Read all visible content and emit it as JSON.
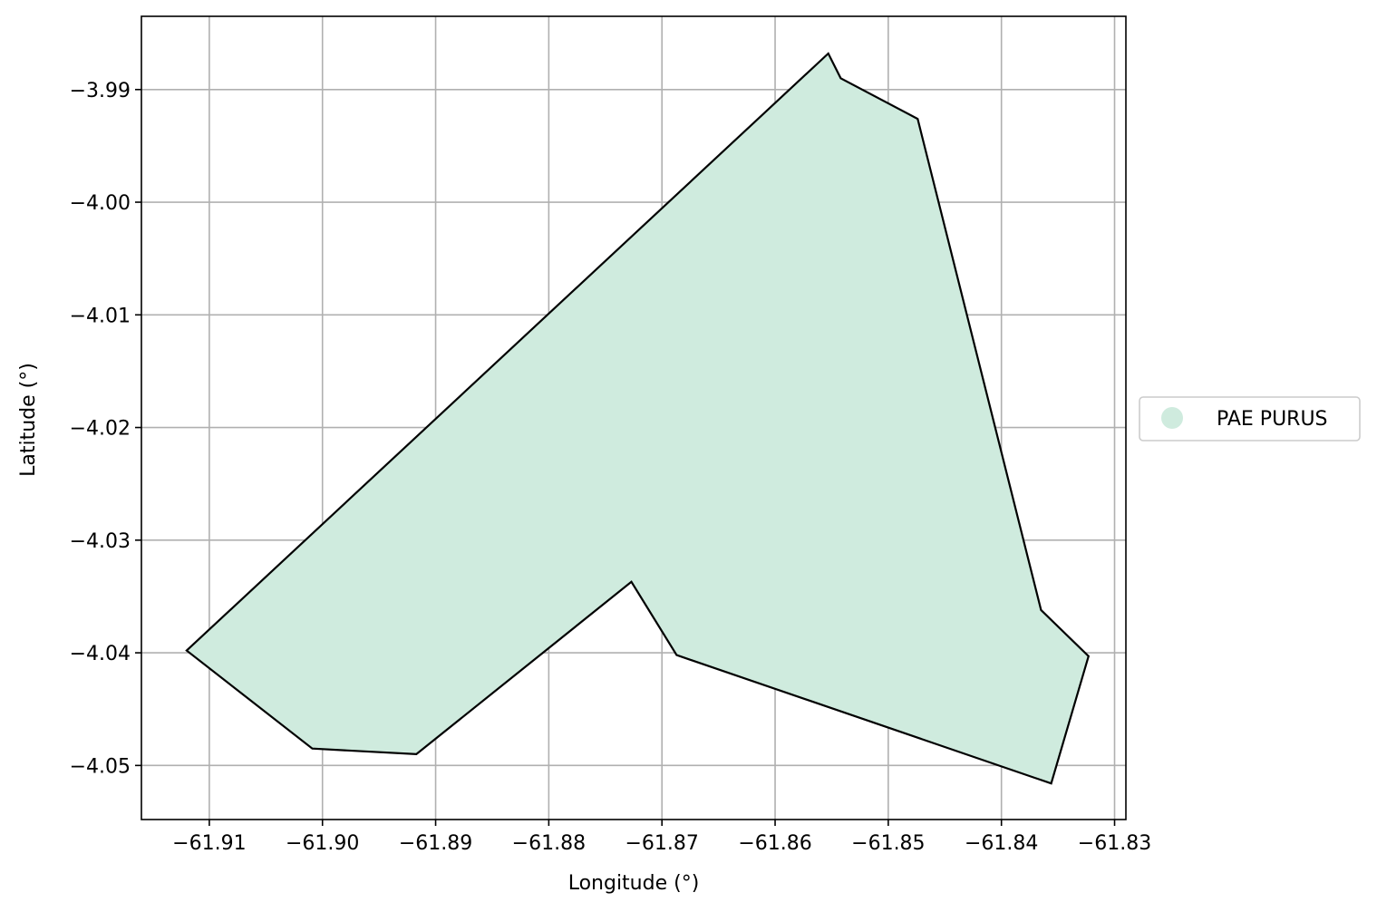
{
  "chart_data": {
    "type": "map",
    "xlabel": "Longitude (°)",
    "ylabel": "Latitude (°)",
    "xlim": [
      -61.916,
      -61.829
    ],
    "ylim": [
      -4.0548,
      -3.9835
    ],
    "grid": true,
    "x_ticks": [
      {
        "value": -61.91,
        "label": "−61.91"
      },
      {
        "value": -61.9,
        "label": "−61.90"
      },
      {
        "value": -61.89,
        "label": "−61.89"
      },
      {
        "value": -61.88,
        "label": "−61.88"
      },
      {
        "value": -61.87,
        "label": "−61.87"
      },
      {
        "value": -61.86,
        "label": "−61.86"
      },
      {
        "value": -61.85,
        "label": "−61.85"
      },
      {
        "value": -61.84,
        "label": "−61.84"
      },
      {
        "value": -61.83,
        "label": "−61.83"
      }
    ],
    "y_ticks": [
      {
        "value": -3.99,
        "label": "−3.99"
      },
      {
        "value": -4.0,
        "label": "−4.00"
      },
      {
        "value": -4.01,
        "label": "−4.01"
      },
      {
        "value": -4.02,
        "label": "−4.02"
      },
      {
        "value": -4.03,
        "label": "−4.03"
      },
      {
        "value": -4.04,
        "label": "−4.04"
      },
      {
        "value": -4.05,
        "label": "−4.05"
      }
    ],
    "features": [
      {
        "name": "PAE PURUS",
        "fill": "#cfebde",
        "stroke": "#000000",
        "coordinates": [
          [
            -61.912,
            -4.0398
          ],
          [
            -61.8553,
            -3.9868
          ],
          [
            -61.8542,
            -3.989
          ],
          [
            -61.8474,
            -3.9926
          ],
          [
            -61.8365,
            -4.0362
          ],
          [
            -61.8323,
            -4.0403
          ],
          [
            -61.8356,
            -4.0516
          ],
          [
            -61.8687,
            -4.0402
          ],
          [
            -61.8727,
            -4.0337
          ],
          [
            -61.8917,
            -4.049
          ],
          [
            -61.9009,
            -4.0485
          ]
        ]
      }
    ],
    "legend": {
      "position": "center-right-outside",
      "entries": [
        {
          "label": "PAE PURUS",
          "color": "#cfebde"
        }
      ]
    }
  }
}
